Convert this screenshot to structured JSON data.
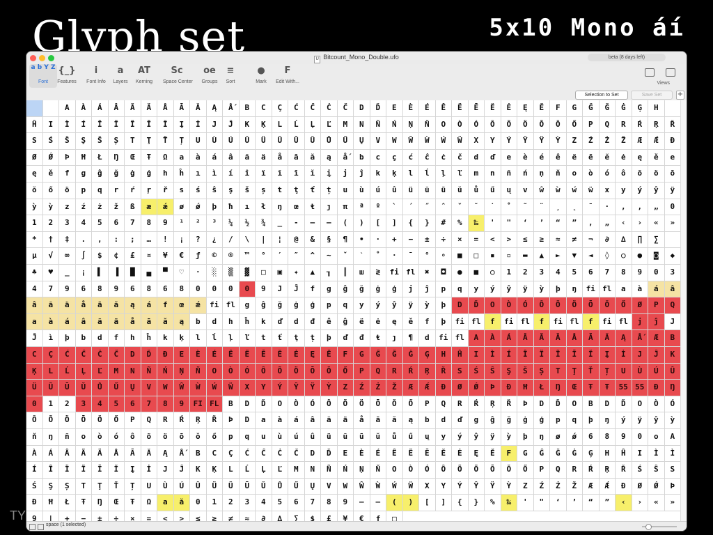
{
  "slide": {
    "title": "Glyph set",
    "badge": "5x10 Mono áí",
    "footer": "TY"
  },
  "window": {
    "title": "Bitcount_Mono_Double.ufo",
    "file_icon": "U",
    "beta": "beta (8 days left)"
  },
  "toolbar": {
    "items": [
      {
        "label": "Font",
        "icon": "a b Y Z"
      },
      {
        "label": "Features",
        "icon": "{_}"
      },
      {
        "label": "Font Info",
        "icon": "i"
      },
      {
        "label": "Layers",
        "icon": "a"
      },
      {
        "label": "Kerning",
        "icon": "AT"
      },
      {
        "label": "Space Center",
        "icon": "Sc"
      },
      {
        "label": "Groups",
        "icon": "oe"
      },
      {
        "label": "Sort",
        "icon": "≡"
      },
      {
        "label": "Mark",
        "icon": "●"
      },
      {
        "label": "Edit With...",
        "icon": "F"
      }
    ],
    "views_label": "Views"
  },
  "subbar": {
    "selection_to_set": "Selection to Set",
    "save_set": "Save Set",
    "plus": "+"
  },
  "status": {
    "text": "space (1 selected)"
  },
  "colors": {
    "yellow": "#f7ef6b",
    "light_yellow": "#f5e3a4",
    "red": "#e84a4f",
    "selected": "#bcd5f5"
  },
  "rows": [
    [
      "",
      "",
      "A",
      "À",
      "Á",
      "Â",
      "Ã",
      "Ä",
      "Å",
      "Ā",
      "Ă",
      "Ą",
      "Ǻ",
      "B",
      "C",
      "Ç",
      "Ć",
      "Ĉ",
      "Ċ",
      "Č",
      "D",
      "Ď",
      "E",
      "È",
      "É",
      "Ê",
      "Ë",
      "Ē",
      "Ĕ",
      "Ė",
      "Ę",
      "Ě",
      "F",
      "G",
      "Ĝ",
      "Ğ",
      "Ġ",
      "Ģ",
      "H"
    ],
    [
      "Ĥ",
      "I",
      "Ì",
      "Í",
      "Î",
      "Ï",
      "Ĩ",
      "Ī",
      "Ĭ",
      "Į",
      "İ",
      "J",
      "Ĵ",
      "K",
      "Ķ",
      "L",
      "Ĺ",
      "Ļ",
      "Ľ",
      "M",
      "N",
      "Ñ",
      "Ń",
      "Ņ",
      "Ň",
      "O",
      "Ò",
      "Ó",
      "Ô",
      "Õ",
      "Ö",
      "Ō",
      "Ŏ",
      "Ő",
      "P",
      "Q",
      "R",
      "Ŕ",
      "Ŗ",
      "Ř"
    ],
    [
      "S",
      "Ś",
      "Ŝ",
      "Ş",
      "Š",
      "Ș",
      "T",
      "Ţ",
      "Ť",
      "Ț",
      "U",
      "Ù",
      "Ú",
      "Û",
      "Ü",
      "Ũ",
      "Ū",
      "Ŭ",
      "Ů",
      "Ű",
      "Ų",
      "V",
      "W",
      "Ŵ",
      "Ẁ",
      "Ẃ",
      "Ẅ",
      "X",
      "Y",
      "Ý",
      "Ŷ",
      "Ÿ",
      "Ỳ",
      "Z",
      "Ź",
      "Ż",
      "Ž",
      "Æ",
      "Ǽ",
      "Ð"
    ],
    [
      "Ø",
      "Ǿ",
      "Þ",
      "Ħ",
      "Ł",
      "Ŋ",
      "Œ",
      "Ŧ",
      "Ω",
      "a",
      "à",
      "á",
      "â",
      "ã",
      "ä",
      "å",
      "ā",
      "ă",
      "ą",
      "ǻ",
      "b",
      "c",
      "ç",
      "ć",
      "ĉ",
      "ċ",
      "č",
      "d",
      "ď",
      "e",
      "è",
      "é",
      "ê",
      "ë",
      "ē",
      "ĕ",
      "ė",
      "ę",
      "ě",
      "e"
    ],
    [
      "ę",
      "ě",
      "f",
      "g",
      "ĝ",
      "ğ",
      "ġ",
      "ģ",
      "h",
      "ĥ",
      "ı",
      "ì",
      "í",
      "î",
      "ï",
      "ĩ",
      "ī",
      "ĭ",
      "į",
      "j",
      "ĵ",
      "k",
      "ķ",
      "l",
      "ĺ",
      "ļ",
      "ľ",
      "m",
      "n",
      "ñ",
      "ń",
      "ņ",
      "ň",
      "o",
      "ò",
      "ó",
      "ô",
      "õ",
      "ö",
      "ō"
    ],
    [
      "ŏ",
      "ő",
      "ö",
      "p",
      "q",
      "r",
      "ŕ",
      "ŗ",
      "ř",
      "s",
      "ś",
      "ŝ",
      "ş",
      "š",
      "ș",
      "t",
      "ţ",
      "ť",
      "ț",
      "u",
      "ù",
      "ú",
      "û",
      "ü",
      "ũ",
      "ū",
      "ŭ",
      "ů",
      "ű",
      "ų",
      "v",
      "ŵ",
      "ẁ",
      "ẃ",
      "ẅ",
      "x",
      "y",
      "ý",
      "ŷ",
      "ÿ"
    ],
    [
      "ỳ",
      "ỳ",
      "z",
      "ź",
      "ż",
      "ž",
      "ß",
      "æ",
      "ǽ",
      "ø",
      "ǿ",
      "þ",
      "ħ",
      "ı",
      "ł",
      "ŋ",
      "œ",
      "ŧ",
      "ȷ",
      "π",
      "ª",
      "º",
      "`",
      "´",
      "˝",
      "ˆ",
      "ˇ",
      "˘",
      "˙",
      "˚",
      "˜",
      "¨",
      "¸",
      "˛",
      "¯",
      "·",
      ",",
      "‚",
      "„",
      "0"
    ],
    [
      "1",
      "2",
      "3",
      "4",
      "5",
      "6",
      "7",
      "8",
      "9",
      "¹",
      "²",
      "³",
      "¼",
      "½",
      "¾",
      "_",
      "-",
      "–",
      "—",
      "(",
      ")",
      "[",
      "]",
      "{",
      "}",
      "#",
      "%",
      "‰",
      "'",
      "\"",
      "‘",
      "’",
      "“",
      "”",
      "‚",
      "„",
      "‹",
      "›",
      "«",
      "»"
    ],
    [
      "*",
      "†",
      "‡",
      ".",
      ",",
      ":",
      ";",
      "…",
      "!",
      "¡",
      "?",
      "¿",
      "/",
      "\\",
      "|",
      "¦",
      "@",
      "&",
      "§",
      "¶",
      "•",
      "·",
      "+",
      "−",
      "±",
      "÷",
      "×",
      "=",
      "<",
      ">",
      "≤",
      "≥",
      "≈",
      "≠",
      "¬",
      "∂",
      "∆",
      "∏",
      "∑"
    ],
    [
      "µ",
      "√",
      "∞",
      "∫",
      "$",
      "¢",
      "£",
      "¤",
      "¥",
      "€",
      "ƒ",
      "©",
      "®",
      "™",
      "°",
      "′",
      "″",
      "^",
      "~",
      "ˇ",
      "ˋ",
      "˚",
      "·",
      "¯",
      "°",
      "∘",
      "■",
      "□",
      "▪",
      "▫",
      "▬",
      "▲",
      "►",
      "▼",
      "◄",
      "◊",
      "○",
      "●",
      "◙",
      "◆"
    ],
    [
      "♣",
      "♥",
      "_",
      "¡",
      "▌",
      "▐",
      "█",
      "▄",
      "▀",
      "♡",
      "·",
      "░",
      "▒",
      "▓",
      "□",
      "▣",
      "✦",
      "▲",
      "╖",
      "║",
      "ш",
      "≷",
      "fi",
      "fl",
      "✖",
      "◘",
      "●",
      "■",
      "○",
      "1",
      "2",
      "3",
      "4",
      "5",
      "6",
      "7",
      "8",
      "9",
      "0",
      "3"
    ],
    [
      "4",
      "7",
      "9",
      "6",
      "8",
      "9",
      "6",
      "8",
      "6",
      "8",
      "0",
      "0",
      "0",
      "0",
      "9",
      "J",
      "Ĵ",
      "f",
      "g",
      "ĝ",
      "ğ",
      "ġ",
      "ģ",
      "j",
      "ĵ",
      "p",
      "q",
      "y",
      "ý",
      "ŷ",
      "ÿ",
      "ỳ",
      "þ",
      "ŋ",
      "fi",
      "fl",
      "a",
      "à",
      "á",
      "â"
    ],
    [
      "â",
      "ã",
      "ä",
      "å",
      "ā",
      "ă",
      "ą",
      "á",
      "f",
      "œ",
      "ǽ",
      "fi",
      "fl",
      "g",
      "ĝ",
      "ğ",
      "ġ",
      "ģ",
      "p",
      "q",
      "y",
      "ý",
      "ŷ",
      "ÿ",
      "ỳ",
      "þ",
      "D",
      "Ď",
      "O",
      "Ò",
      "Ó",
      "Ô",
      "Õ",
      "Ö",
      "Ō",
      "Ŏ",
      "Ő",
      "Ø",
      "P",
      "Q"
    ],
    [
      "a",
      "à",
      "á",
      "â",
      "ã",
      "ä",
      "å",
      "ā",
      "ă",
      "ą",
      "b",
      "d",
      "h",
      "ĥ",
      "k",
      "ď",
      "d",
      "đ",
      "ê",
      "ĝ",
      "ë",
      "ė",
      "ę",
      "ě",
      "f",
      "þ",
      "fi",
      "fl",
      "f",
      "fi",
      "fl",
      "f",
      "fi",
      "fl",
      "f",
      "fi",
      "fl",
      "j",
      "ĵ",
      "J"
    ],
    [
      "Ĵ",
      "ì",
      "þ",
      "b",
      "d",
      "f",
      "h",
      "ĥ",
      "k",
      "ķ",
      "l",
      "ĺ",
      "ļ",
      "ľ",
      "t",
      "ť",
      "ţ",
      "ț",
      "þ",
      "ď",
      "đ",
      "ŧ",
      "ȷ",
      "¶",
      "d",
      "fi",
      "fl",
      "A",
      "À",
      "Á",
      "Â",
      "Ã",
      "Ä",
      "Å",
      "Ā",
      "Ă",
      "Ą",
      "Ǻ",
      "Æ",
      "B"
    ],
    [
      "C",
      "Ç",
      "Ć",
      "Ĉ",
      "Ċ",
      "Č",
      "D",
      "Ď",
      "Ð",
      "E",
      "È",
      "É",
      "Ê",
      "Ë",
      "Ē",
      "Ĕ",
      "Ė",
      "Ę",
      "Ě",
      "F",
      "G",
      "Ĝ",
      "Ğ",
      "Ġ",
      "Ģ",
      "H",
      "Ĥ",
      "I",
      "Ì",
      "Í",
      "Î",
      "Ï",
      "Ĩ",
      "Ī",
      "Ĭ",
      "Į",
      "İ",
      "J",
      "Ĵ",
      "K"
    ],
    [
      "Ķ",
      "L",
      "Ĺ",
      "Ļ",
      "Ľ",
      "M",
      "N",
      "Ñ",
      "Ń",
      "Ņ",
      "Ň",
      "O",
      "Ò",
      "Ó",
      "Ô",
      "Õ",
      "Ö",
      "Ō",
      "Ŏ",
      "Ő",
      "P",
      "Q",
      "R",
      "Ŕ",
      "Ŗ",
      "Ř",
      "S",
      "Ś",
      "Ŝ",
      "Ş",
      "Š",
      "Ș",
      "T",
      "Ţ",
      "Ť",
      "Ț",
      "U",
      "Ù",
      "Ú",
      "Û"
    ],
    [
      "Ü",
      "Ũ",
      "Ū",
      "Ŭ",
      "Ů",
      "Ű",
      "Ų",
      "V",
      "W",
      "Ŵ",
      "Ẁ",
      "Ẃ",
      "Ẅ",
      "X",
      "Y",
      "Ý",
      "Ŷ",
      "Ÿ",
      "Ỳ",
      "Z",
      "Ź",
      "Ż",
      "Ž",
      "Æ",
      "Ǽ",
      "Ð",
      "Ø",
      "Ǿ",
      "Þ",
      "Ð",
      "Ħ",
      "Ł",
      "Ŋ",
      "Œ",
      "Ŧ",
      "Ŧ",
      "55",
      "55",
      "Ð",
      "Ŋ"
    ],
    [
      "0",
      "1",
      "2",
      "3",
      "4",
      "5",
      "6",
      "7",
      "8",
      "9",
      "FI",
      "FL",
      "B",
      "D",
      "Ď",
      "O",
      "Ò",
      "Ó",
      "Ô",
      "Õ",
      "Ö",
      "Ō",
      "Ŏ",
      "Ő",
      "P",
      "Q",
      "R",
      "Ŕ",
      "Ŗ",
      "Ř",
      "Þ",
      "D",
      "Ď",
      "O",
      "B",
      "D",
      "Ď",
      "O",
      "Ò",
      "Ó"
    ],
    [
      "Ô",
      "Õ",
      "Ö",
      "Ō",
      "Ŏ",
      "Ő",
      "P",
      "Q",
      "R",
      "Ŕ",
      "Ŗ",
      "Ř",
      "Þ",
      "D",
      "a",
      "à",
      "á",
      "â",
      "ã",
      "ä",
      "å",
      "ā",
      "ă",
      "ą",
      "b",
      "d",
      "ď",
      "g",
      "ĝ",
      "ğ",
      "ġ",
      "ģ",
      "p",
      "q",
      "þ",
      "ŋ",
      "ý",
      "ÿ",
      "ŷ",
      "ỳ"
    ],
    [
      "ň",
      "ŋ",
      "ñ",
      "o",
      "ò",
      "ó",
      "ô",
      "õ",
      "ö",
      "ō",
      "ŏ",
      "ő",
      "p",
      "q",
      "u",
      "ù",
      "ú",
      "û",
      "ü",
      "ũ",
      "ū",
      "ŭ",
      "ů",
      "ű",
      "ų",
      "y",
      "ý",
      "ŷ",
      "ÿ",
      "ỳ",
      "þ",
      "ŋ",
      "ø",
      "ǿ",
      "6",
      "8",
      "9",
      "0",
      "o",
      "A"
    ],
    [
      "À",
      "Á",
      "Â",
      "Ã",
      "Ä",
      "Å",
      "Ā",
      "Ă",
      "Ą",
      "Ǻ",
      "B",
      "C",
      "Ç",
      "Ć",
      "Ĉ",
      "Ċ",
      "Č",
      "D",
      "Ď",
      "E",
      "È",
      "É",
      "Ê",
      "Ë",
      "Ē",
      "Ĕ",
      "Ė",
      "Ę",
      "Ě",
      "F",
      "G",
      "Ĝ",
      "Ğ",
      "Ġ",
      "Ģ",
      "H",
      "Ĥ",
      "I",
      "Ì",
      "Ì"
    ],
    [
      "Í",
      "Î",
      "Ï",
      "Ĩ",
      "Ī",
      "Ĭ",
      "Į",
      "İ",
      "J",
      "Ĵ",
      "K",
      "Ķ",
      "L",
      "Ĺ",
      "Ļ",
      "Ľ",
      "M",
      "N",
      "Ñ",
      "Ń",
      "Ņ",
      "Ň",
      "O",
      "Ò",
      "Ó",
      "Ô",
      "Õ",
      "Ö",
      "Ō",
      "Ŏ",
      "Ő",
      "P",
      "Q",
      "R",
      "Ŕ",
      "Ŗ",
      "Ř",
      "Ś",
      "Ŝ",
      "S"
    ],
    [
      "Ś",
      "Ş",
      "Ș",
      "T",
      "Ţ",
      "Ť",
      "Ț",
      "U",
      "Ù",
      "Ú",
      "Û",
      "Ü",
      "Ũ",
      "Ū",
      "Ŭ",
      "Ů",
      "Ű",
      "Ų",
      "V",
      "W",
      "Ŵ",
      "Ẁ",
      "Ẃ",
      "Ẅ",
      "X",
      "Y",
      "Ý",
      "Ŷ",
      "Ÿ",
      "Ỳ",
      "Z",
      "Ź",
      "Ż",
      "Ž",
      "Æ",
      "Ǽ",
      "Ð",
      "Ø",
      "Ǿ",
      "Þ"
    ],
    [
      "Ð",
      "Ħ",
      "Ł",
      "Ŧ",
      "Ŋ",
      "Œ",
      "Ŧ",
      "Ω",
      "a",
      "ă",
      "0",
      "1",
      "2",
      "3",
      "4",
      "5",
      "6",
      "7",
      "8",
      "9",
      "—",
      "–",
      "(",
      ")",
      "[",
      "]",
      "{",
      "}",
      "%",
      "‰",
      "'",
      "\"",
      "‘",
      "’",
      "“",
      "”",
      "‹",
      "›",
      "«",
      "»"
    ],
    [
      "9",
      "|",
      "+",
      "−",
      "±",
      "÷",
      "×",
      "=",
      "<",
      ">",
      "≤",
      "≥",
      "≠",
      "≈",
      "∂",
      "∆",
      "∑",
      "$",
      "£",
      "¥",
      "€",
      "ƒ",
      "□"
    ]
  ]
}
